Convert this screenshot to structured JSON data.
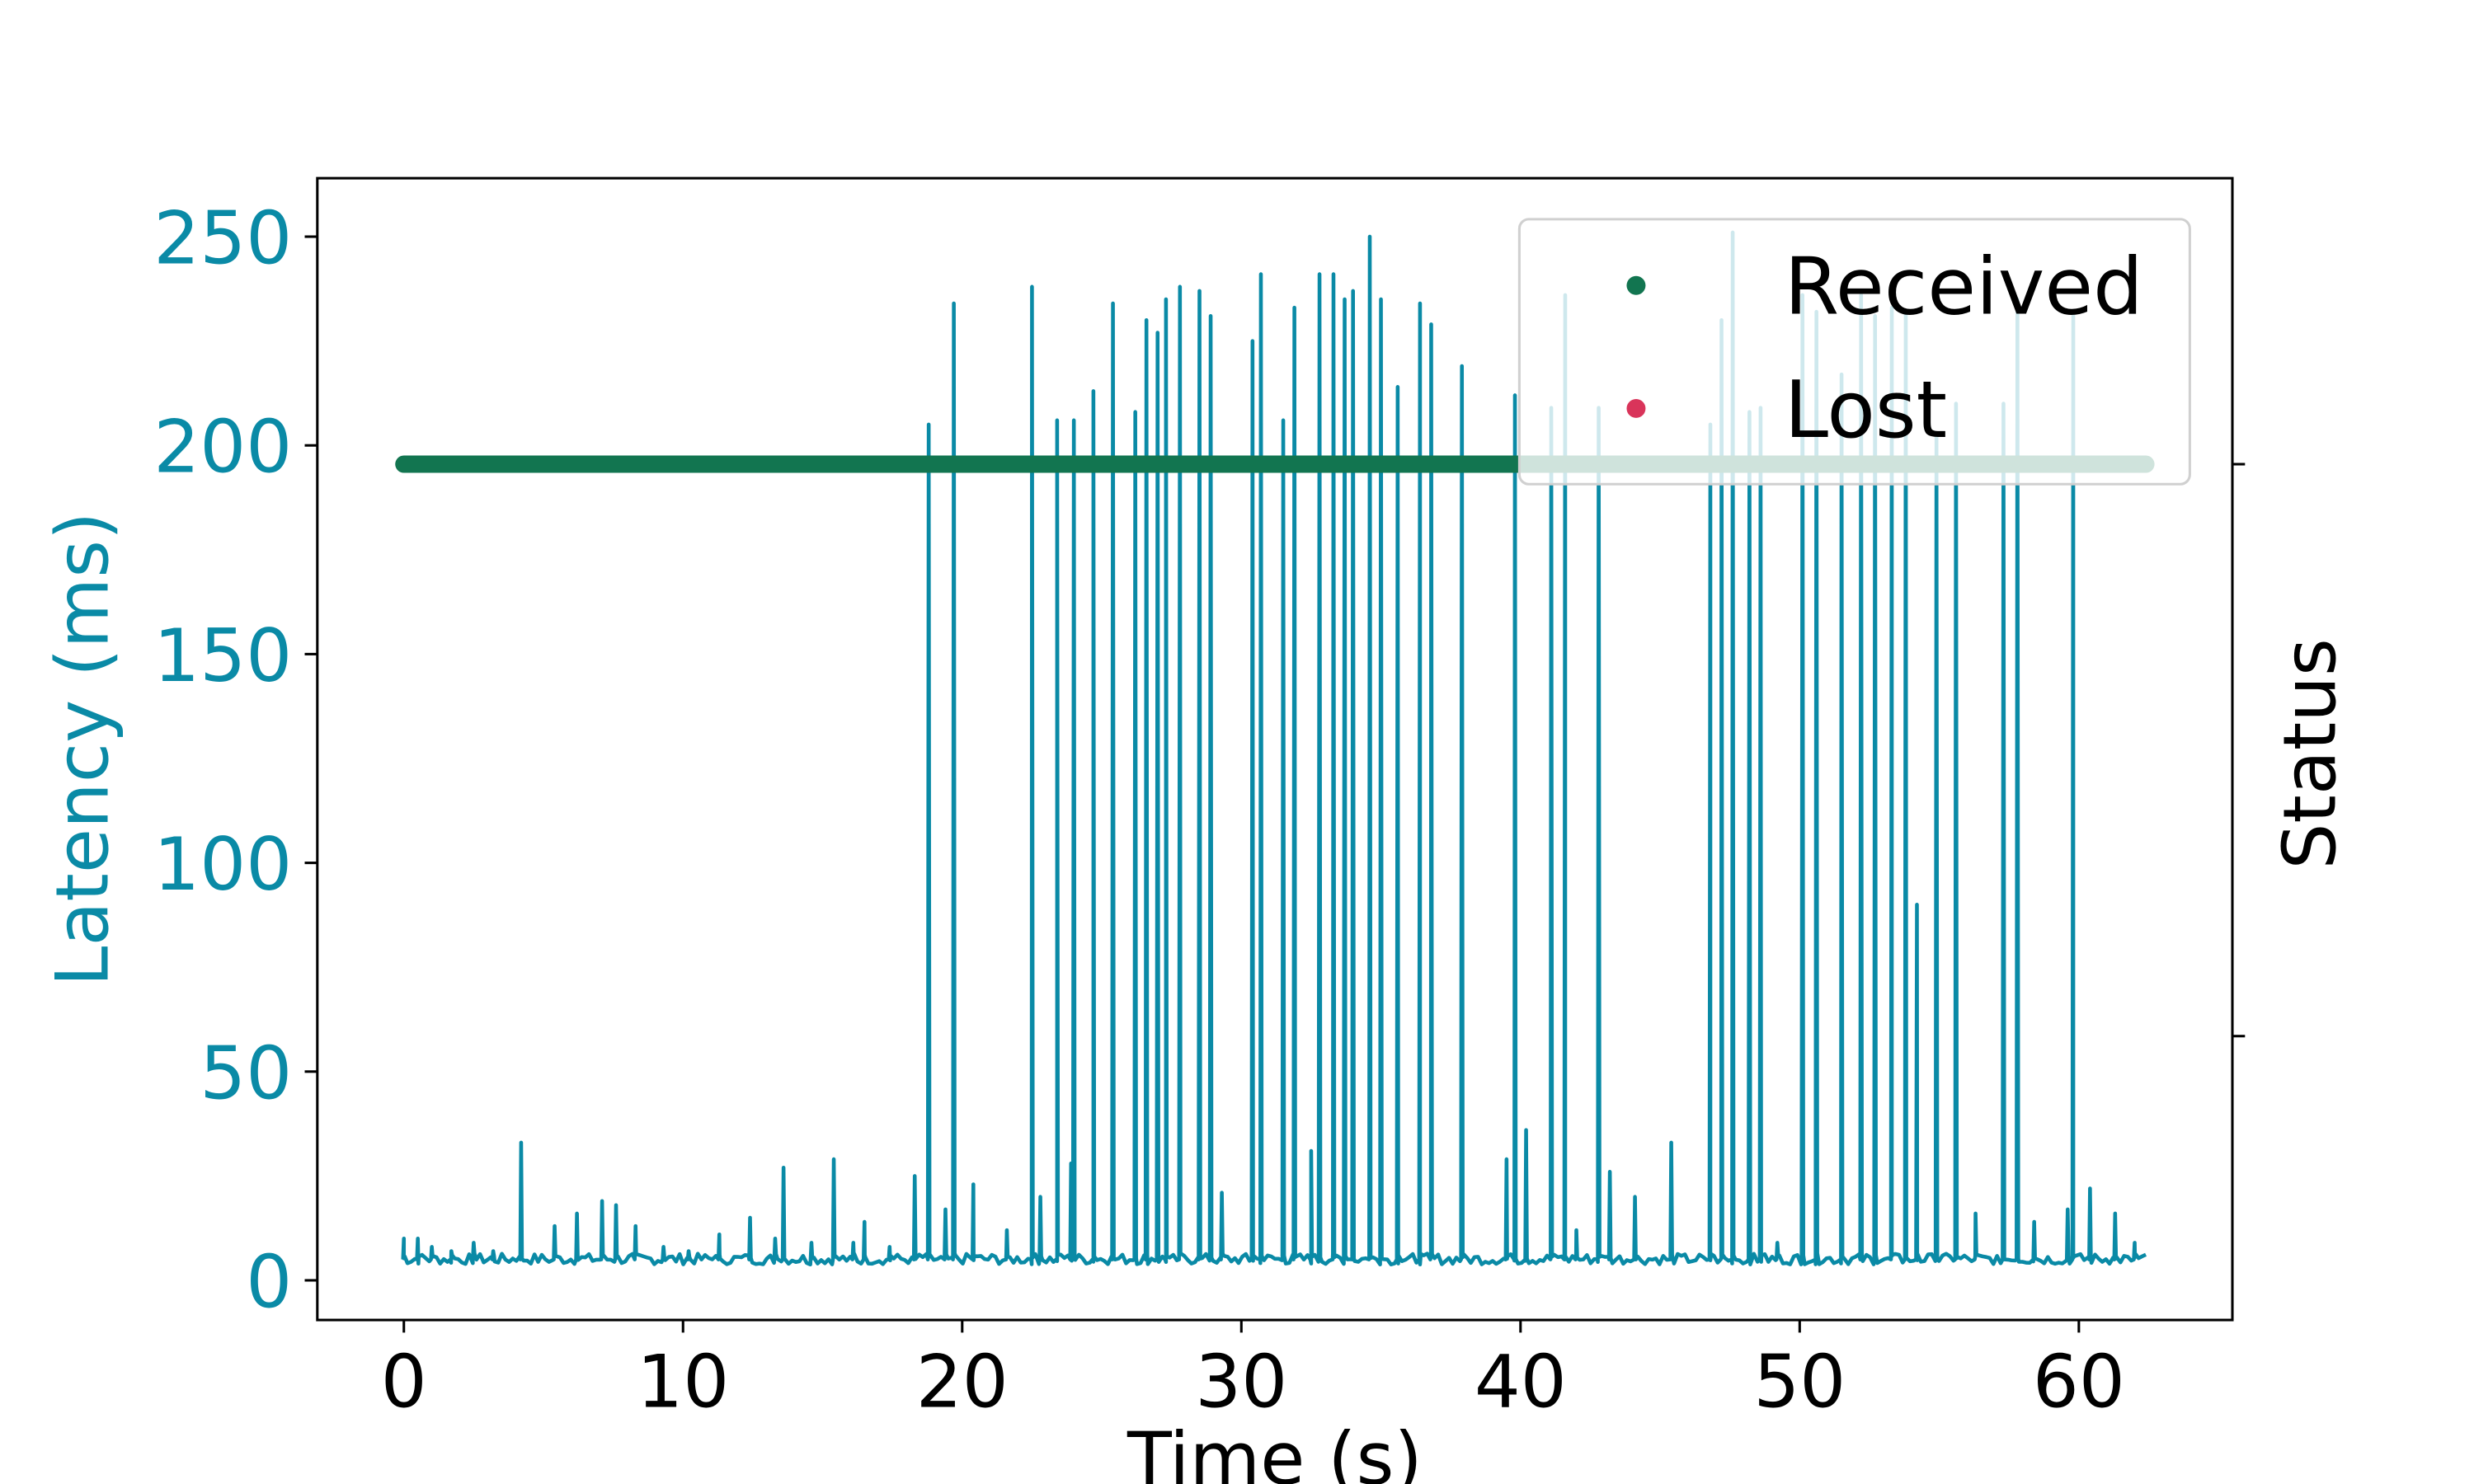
{
  "chart_data": {
    "type": "line",
    "xlabel": "Time (s)",
    "ylabel_left": "Latency (ms)",
    "ylabel_right": "Status",
    "xlim": [
      -3.1,
      65.5
    ],
    "ylim": [
      -9.5,
      264
    ],
    "x_ticks": [
      0,
      10,
      20,
      30,
      40,
      50,
      60
    ],
    "y_ticks": [
      0,
      50,
      100,
      150,
      200,
      250
    ],
    "grid": false,
    "legend_position": "top-right",
    "colors": {
      "latency": "#0a8aa6",
      "received": "#127550",
      "lost": "#d9345a",
      "axis_text": "#000000"
    },
    "latency_baseline_ms": 5,
    "x_end_s": 62.4,
    "latency_spikes": [
      {
        "t": 0.0,
        "ms": 10
      },
      {
        "t": 0.5,
        "ms": 10
      },
      {
        "t": 1.0,
        "ms": 8
      },
      {
        "t": 1.7,
        "ms": 7
      },
      {
        "t": 2.5,
        "ms": 9
      },
      {
        "t": 3.2,
        "ms": 7
      },
      {
        "t": 4.2,
        "ms": 33
      },
      {
        "t": 5.4,
        "ms": 13
      },
      {
        "t": 6.2,
        "ms": 16
      },
      {
        "t": 7.1,
        "ms": 19
      },
      {
        "t": 7.6,
        "ms": 18
      },
      {
        "t": 8.3,
        "ms": 13
      },
      {
        "t": 9.3,
        "ms": 8
      },
      {
        "t": 10.2,
        "ms": 7
      },
      {
        "t": 11.3,
        "ms": 11
      },
      {
        "t": 12.4,
        "ms": 15
      },
      {
        "t": 13.3,
        "ms": 10
      },
      {
        "t": 13.6,
        "ms": 27
      },
      {
        "t": 14.6,
        "ms": 9
      },
      {
        "t": 15.4,
        "ms": 29
      },
      {
        "t": 16.1,
        "ms": 9
      },
      {
        "t": 16.5,
        "ms": 14
      },
      {
        "t": 17.4,
        "ms": 8
      },
      {
        "t": 18.3,
        "ms": 25
      },
      {
        "t": 18.8,
        "ms": 205
      },
      {
        "t": 19.4,
        "ms": 17
      },
      {
        "t": 19.7,
        "ms": 234
      },
      {
        "t": 20.4,
        "ms": 23
      },
      {
        "t": 21.6,
        "ms": 12
      },
      {
        "t": 22.5,
        "ms": 238
      },
      {
        "t": 22.8,
        "ms": 20
      },
      {
        "t": 23.4,
        "ms": 206
      },
      {
        "t": 23.9,
        "ms": 28
      },
      {
        "t": 24.0,
        "ms": 206
      },
      {
        "t": 24.7,
        "ms": 213
      },
      {
        "t": 25.4,
        "ms": 234
      },
      {
        "t": 26.2,
        "ms": 208
      },
      {
        "t": 26.6,
        "ms": 230
      },
      {
        "t": 27.0,
        "ms": 227
      },
      {
        "t": 27.3,
        "ms": 235
      },
      {
        "t": 27.8,
        "ms": 238
      },
      {
        "t": 28.5,
        "ms": 237
      },
      {
        "t": 28.9,
        "ms": 231
      },
      {
        "t": 29.3,
        "ms": 21
      },
      {
        "t": 30.4,
        "ms": 225
      },
      {
        "t": 30.7,
        "ms": 241
      },
      {
        "t": 31.5,
        "ms": 206
      },
      {
        "t": 31.9,
        "ms": 233
      },
      {
        "t": 32.5,
        "ms": 31
      },
      {
        "t": 32.8,
        "ms": 241
      },
      {
        "t": 33.3,
        "ms": 241
      },
      {
        "t": 33.7,
        "ms": 235
      },
      {
        "t": 34.0,
        "ms": 237
      },
      {
        "t": 34.6,
        "ms": 250
      },
      {
        "t": 35.0,
        "ms": 235
      },
      {
        "t": 35.6,
        "ms": 214
      },
      {
        "t": 36.4,
        "ms": 234
      },
      {
        "t": 36.8,
        "ms": 229
      },
      {
        "t": 37.9,
        "ms": 219
      },
      {
        "t": 39.5,
        "ms": 29
      },
      {
        "t": 39.8,
        "ms": 212
      },
      {
        "t": 40.2,
        "ms": 36
      },
      {
        "t": 41.1,
        "ms": 209
      },
      {
        "t": 41.6,
        "ms": 236
      },
      {
        "t": 42.0,
        "ms": 12
      },
      {
        "t": 42.8,
        "ms": 209
      },
      {
        "t": 43.2,
        "ms": 26
      },
      {
        "t": 44.1,
        "ms": 20
      },
      {
        "t": 45.4,
        "ms": 33
      },
      {
        "t": 46.8,
        "ms": 205
      },
      {
        "t": 47.2,
        "ms": 230
      },
      {
        "t": 47.6,
        "ms": 251
      },
      {
        "t": 48.2,
        "ms": 208
      },
      {
        "t": 48.6,
        "ms": 209
      },
      {
        "t": 49.2,
        "ms": 9
      },
      {
        "t": 50.1,
        "ms": 236
      },
      {
        "t": 50.6,
        "ms": 232
      },
      {
        "t": 51.5,
        "ms": 217
      },
      {
        "t": 52.2,
        "ms": 236
      },
      {
        "t": 52.7,
        "ms": 231
      },
      {
        "t": 53.3,
        "ms": 233
      },
      {
        "t": 53.8,
        "ms": 232
      },
      {
        "t": 54.2,
        "ms": 90
      },
      {
        "t": 54.9,
        "ms": 202
      },
      {
        "t": 55.6,
        "ms": 210
      },
      {
        "t": 56.3,
        "ms": 16
      },
      {
        "t": 57.3,
        "ms": 210
      },
      {
        "t": 57.8,
        "ms": 235
      },
      {
        "t": 58.4,
        "ms": 14
      },
      {
        "t": 59.6,
        "ms": 17
      },
      {
        "t": 59.8,
        "ms": 231
      },
      {
        "t": 60.4,
        "ms": 22
      },
      {
        "t": 61.3,
        "ms": 16
      },
      {
        "t": 62.0,
        "ms": 9
      }
    ],
    "status_series": [
      {
        "name": "Received",
        "x_start": 0.0,
        "x_end": 62.4,
        "y_ms_equivalent": 195.5
      },
      {
        "name": "Lost",
        "points": []
      }
    ],
    "right_axis_ticks": [
      {
        "y_ms_equivalent": 195.5
      },
      {
        "y_ms_equivalent": 58.5
      }
    ]
  }
}
